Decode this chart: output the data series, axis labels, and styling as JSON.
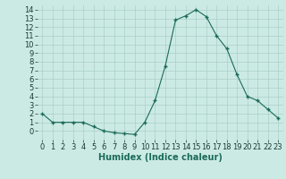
{
  "x": [
    0,
    1,
    2,
    3,
    4,
    5,
    6,
    7,
    8,
    9,
    10,
    11,
    12,
    13,
    14,
    15,
    16,
    17,
    18,
    19,
    20,
    21,
    22,
    23
  ],
  "y": [
    2,
    1,
    1,
    1,
    1,
    0.5,
    0.0,
    -0.2,
    -0.3,
    -0.4,
    1.0,
    3.5,
    7.5,
    12.8,
    13.3,
    14.0,
    13.2,
    11.0,
    9.5,
    6.5,
    4.0,
    3.5,
    2.5,
    1.5
  ],
  "line_color": "#1a6b5a",
  "marker": "+",
  "marker_size": 3,
  "marker_lw": 1.0,
  "background_color": "#cceae4",
  "grid_color": "#aacfc8",
  "xlabel": "Humidex (Indice chaleur)",
  "xlabel_fontsize": 7,
  "tick_fontsize": 6,
  "ylim": [
    -1,
    14.5
  ],
  "xlim": [
    -0.5,
    23.5
  ],
  "yticks": [
    0,
    1,
    2,
    3,
    4,
    5,
    6,
    7,
    8,
    9,
    10,
    11,
    12,
    13,
    14
  ],
  "xticks": [
    0,
    1,
    2,
    3,
    4,
    5,
    6,
    7,
    8,
    9,
    10,
    11,
    12,
    13,
    14,
    15,
    16,
    17,
    18,
    19,
    20,
    21,
    22,
    23
  ]
}
